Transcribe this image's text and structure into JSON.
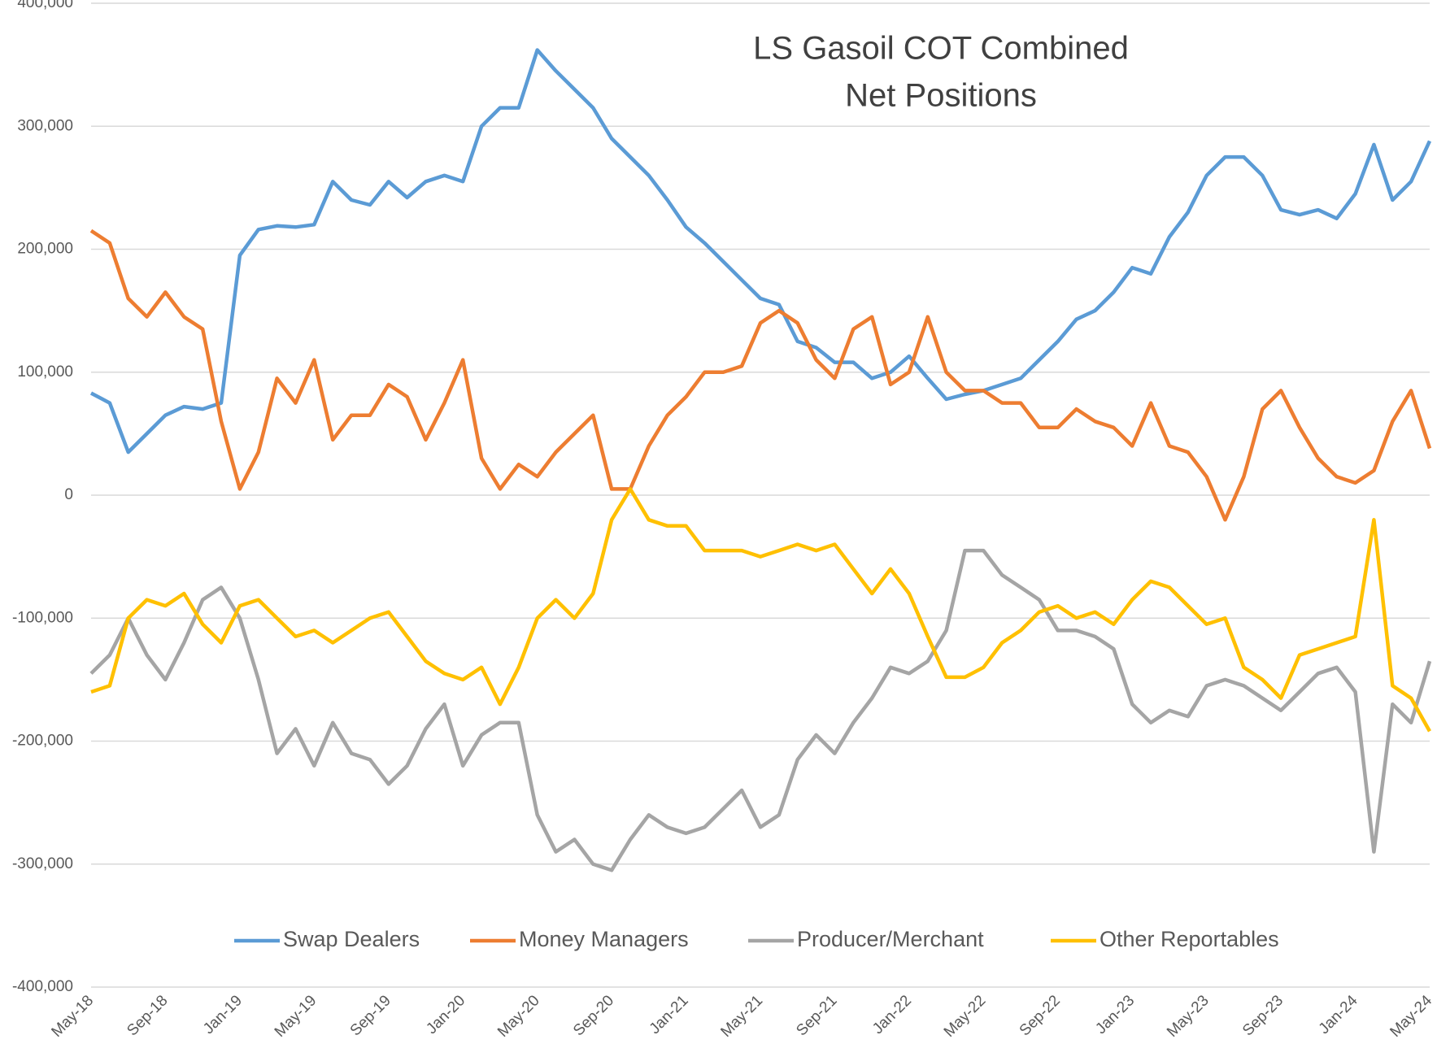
{
  "chart_data": {
    "type": "line",
    "title": "LS Gasoil COT Combined",
    "subtitle": "Net Positions",
    "categories": [
      "May-18",
      null,
      null,
      null,
      "Sep-18",
      null,
      null,
      null,
      "Jan-19",
      null,
      null,
      null,
      "May-19",
      null,
      null,
      null,
      "Sep-19",
      null,
      null,
      null,
      "Jan-20",
      null,
      null,
      null,
      "May-20",
      null,
      null,
      null,
      "Sep-20",
      null,
      null,
      null,
      "Jan-21",
      null,
      null,
      null,
      "May-21",
      null,
      null,
      null,
      "Sep-21",
      null,
      null,
      null,
      "Jan-22",
      null,
      null,
      null,
      "May-22",
      null,
      null,
      null,
      "Sep-22",
      null,
      null,
      null,
      "Jan-23",
      null,
      null,
      null,
      "May-23",
      null,
      null,
      null,
      "Sep-23",
      null,
      null,
      null,
      "Jan-24",
      null,
      null,
      null,
      "May-24"
    ],
    "series": [
      {
        "name": "Swap Dealers",
        "color": "#5b9bd5",
        "values": [
          83000,
          75000,
          35000,
          50000,
          65000,
          72000,
          70000,
          75000,
          195000,
          216000,
          219000,
          218000,
          220000,
          255000,
          240000,
          236000,
          255000,
          242000,
          255000,
          260000,
          255000,
          300000,
          315000,
          315000,
          362000,
          345000,
          330000,
          315000,
          290000,
          275000,
          260000,
          240000,
          218000,
          205000,
          190000,
          175000,
          160000,
          155000,
          125000,
          120000,
          108000,
          108000,
          95000,
          100000,
          113000,
          95000,
          78000,
          82000,
          85000,
          90000,
          95000,
          110000,
          125000,
          143000,
          150000,
          165000,
          185000,
          180000,
          210000,
          230000,
          260000,
          275000,
          275000,
          260000,
          232000,
          228000,
          232000,
          225000,
          245000,
          285000,
          240000,
          255000,
          288000
        ]
      },
      {
        "name": "Money Managers",
        "color": "#ed7d31",
        "values": [
          215000,
          205000,
          160000,
          145000,
          165000,
          145000,
          135000,
          60000,
          5000,
          35000,
          95000,
          75000,
          110000,
          45000,
          65000,
          65000,
          90000,
          80000,
          45000,
          75000,
          110000,
          30000,
          5000,
          25000,
          15000,
          35000,
          50000,
          65000,
          5000,
          5000,
          40000,
          65000,
          80000,
          100000,
          100000,
          105000,
          140000,
          150000,
          140000,
          110000,
          95000,
          135000,
          145000,
          90000,
          100000,
          145000,
          100000,
          85000,
          85000,
          75000,
          75000,
          55000,
          55000,
          70000,
          60000,
          55000,
          40000,
          75000,
          40000,
          35000,
          15000,
          -20000,
          15000,
          70000,
          85000,
          55000,
          30000,
          15000,
          10000,
          20000,
          60000,
          85000,
          38000
        ]
      },
      {
        "name": "Producer/Merchant",
        "color": "#a5a5a5",
        "values": [
          -145000,
          -130000,
          -100000,
          -130000,
          -150000,
          -120000,
          -85000,
          -75000,
          -100000,
          -150000,
          -210000,
          -190000,
          -220000,
          -185000,
          -210000,
          -215000,
          -235000,
          -220000,
          -190000,
          -170000,
          -220000,
          -195000,
          -185000,
          -185000,
          -260000,
          -290000,
          -280000,
          -300000,
          -305000,
          -280000,
          -260000,
          -270000,
          -275000,
          -270000,
          -255000,
          -240000,
          -270000,
          -260000,
          -215000,
          -195000,
          -210000,
          -185000,
          -165000,
          -140000,
          -145000,
          -135000,
          -110000,
          -45000,
          -45000,
          -65000,
          -75000,
          -85000,
          -110000,
          -110000,
          -115000,
          -125000,
          -170000,
          -185000,
          -175000,
          -180000,
          -155000,
          -150000,
          -155000,
          -165000,
          -175000,
          -160000,
          -145000,
          -140000,
          -160000,
          -290000,
          -170000,
          -185000,
          -135000
        ]
      },
      {
        "name": "Other Reportables",
        "color": "#ffc000",
        "values": [
          -160000,
          -155000,
          -100000,
          -85000,
          -90000,
          -80000,
          -105000,
          -120000,
          -90000,
          -85000,
          -100000,
          -115000,
          -110000,
          -120000,
          -110000,
          -100000,
          -95000,
          -115000,
          -135000,
          -145000,
          -150000,
          -140000,
          -170000,
          -140000,
          -100000,
          -85000,
          -100000,
          -80000,
          -20000,
          5000,
          -20000,
          -25000,
          -25000,
          -45000,
          -45000,
          -45000,
          -50000,
          -45000,
          -40000,
          -45000,
          -40000,
          -60000,
          -80000,
          -60000,
          -80000,
          -115000,
          -148000,
          -148000,
          -140000,
          -120000,
          -110000,
          -95000,
          -90000,
          -100000,
          -95000,
          -105000,
          -85000,
          -70000,
          -75000,
          -90000,
          -105000,
          -100000,
          -140000,
          -150000,
          -165000,
          -130000,
          -125000,
          -120000,
          -115000,
          -20000,
          -155000,
          -165000,
          -192000
        ]
      }
    ],
    "ylim": [
      -400000,
      400000
    ],
    "yticks": [
      {
        "value": -400000,
        "label": "-400,000"
      },
      {
        "value": -300000,
        "label": "-300,000"
      },
      {
        "value": -200000,
        "label": "-200,000"
      },
      {
        "value": -100000,
        "label": "-100,000"
      },
      0,
      {
        "value": 100000,
        "label": "100,000"
      },
      {
        "value": 200000,
        "label": "200,000"
      },
      {
        "value": 300000,
        "label": "300,000"
      },
      {
        "value": 400000,
        "label": "400,000"
      }
    ],
    "grid": true,
    "legend": "bottom"
  }
}
